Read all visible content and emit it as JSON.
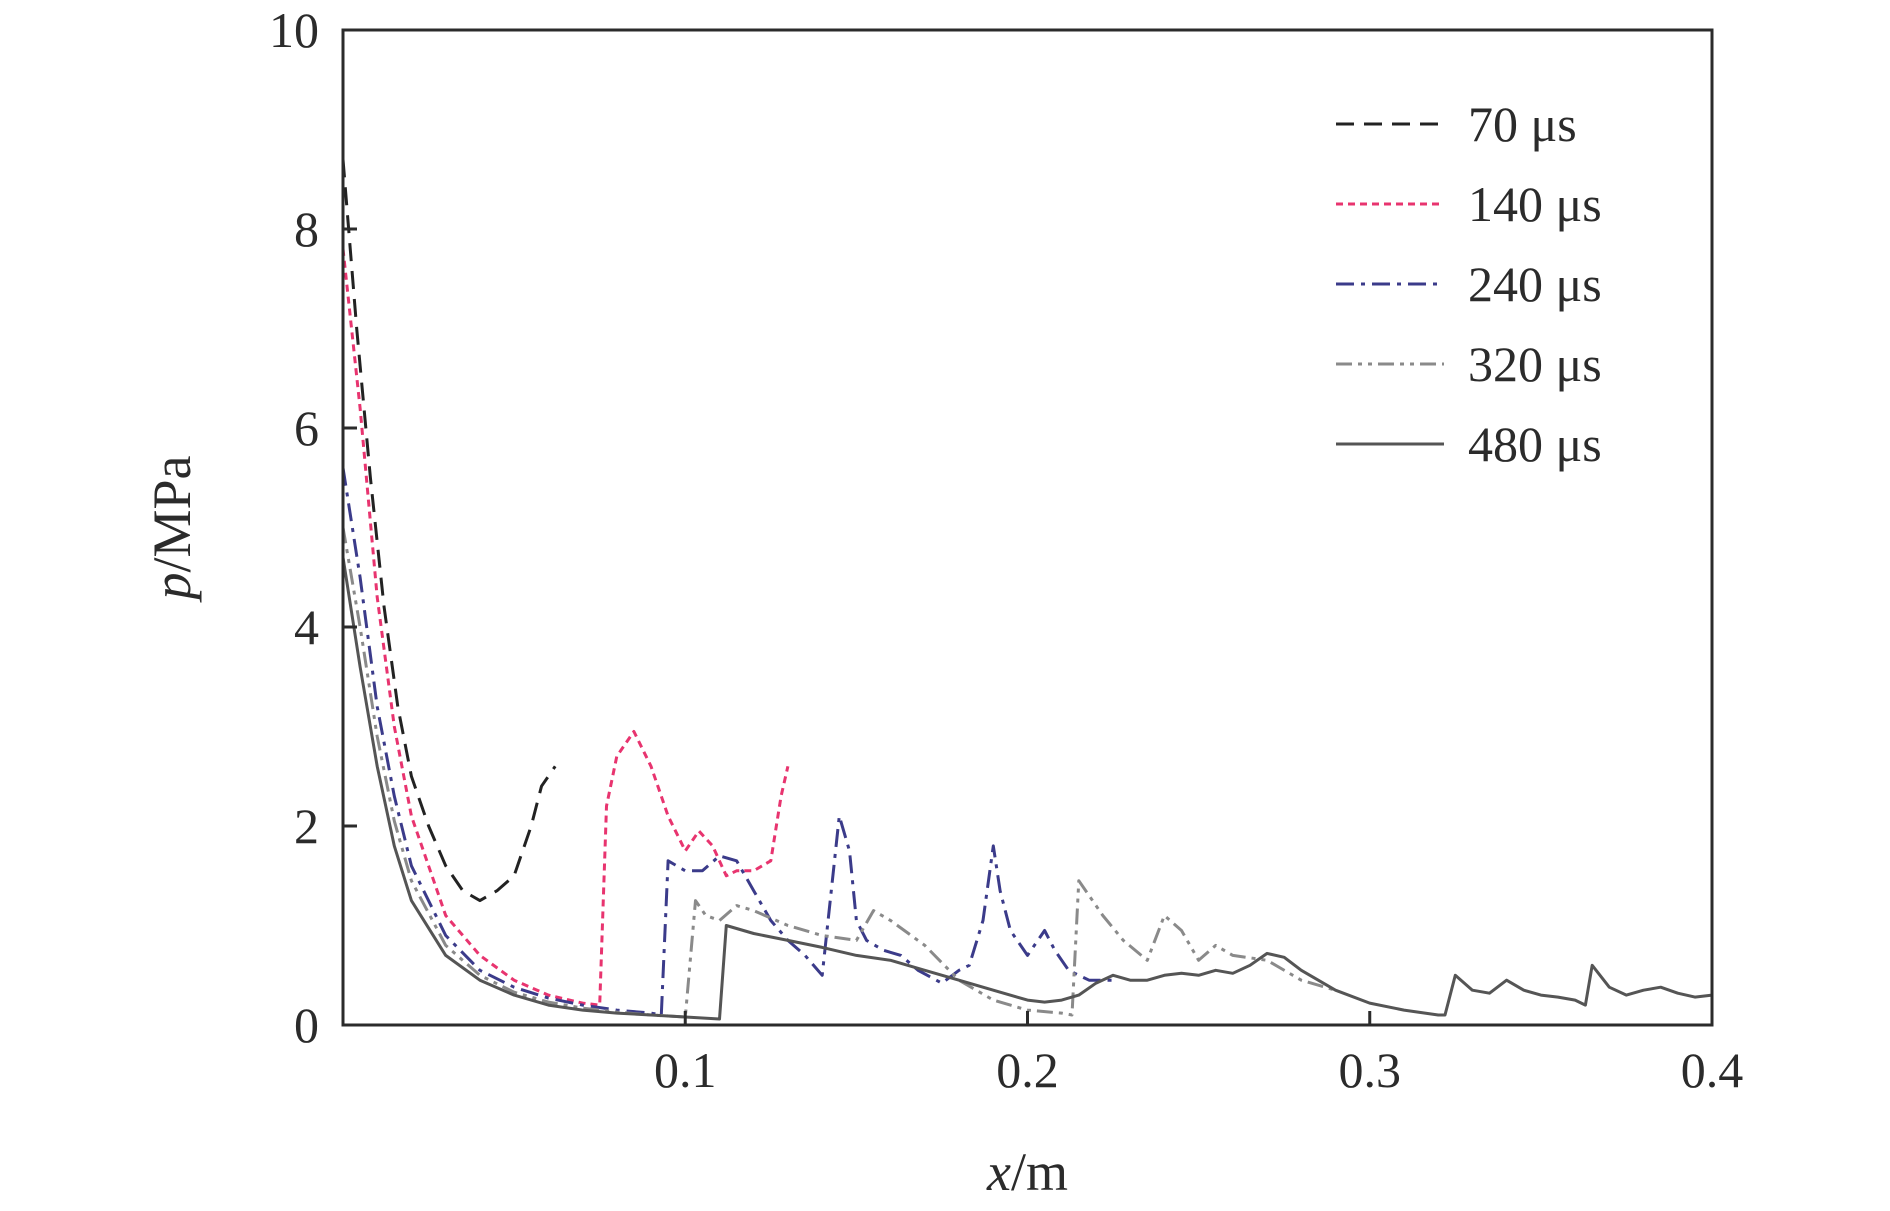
{
  "chart_data": {
    "type": "line",
    "xlabel": {
      "var": "x",
      "unit": "/m"
    },
    "ylabel": {
      "var": "p",
      "unit": "/MPa"
    },
    "xlim": [
      0.0,
      0.4
    ],
    "ylim": [
      0,
      10
    ],
    "x_ticks": [
      0.1,
      0.2,
      0.3,
      0.4
    ],
    "x_tick_labels": [
      "0.1",
      "0.2",
      "0.3",
      "0.4"
    ],
    "y_ticks": [
      0,
      2,
      4,
      6,
      8,
      10
    ],
    "y_tick_labels": [
      "0",
      "2",
      "4",
      "6",
      "8",
      "10"
    ],
    "grid": false,
    "legend_position": "top-right",
    "series": [
      {
        "name": "70 μs",
        "color": "#222222",
        "dash": "dashed",
        "x": [
          0.0,
          0.004,
          0.008,
          0.012,
          0.016,
          0.02,
          0.025,
          0.03,
          0.035,
          0.04,
          0.045,
          0.05,
          0.055,
          0.058,
          0.06,
          0.062
        ],
        "y": [
          8.7,
          7.0,
          5.5,
          4.2,
          3.2,
          2.5,
          2.0,
          1.6,
          1.35,
          1.25,
          1.35,
          1.5,
          2.0,
          2.4,
          2.5,
          2.6
        ]
      },
      {
        "name": "140 μs",
        "color": "#e8346f",
        "dash": "dotted",
        "x": [
          0.0,
          0.005,
          0.01,
          0.015,
          0.02,
          0.03,
          0.04,
          0.05,
          0.06,
          0.07,
          0.075,
          0.077,
          0.08,
          0.085,
          0.09,
          0.095,
          0.1,
          0.104,
          0.108,
          0.112,
          0.115,
          0.12,
          0.125,
          0.128,
          0.13
        ],
        "y": [
          7.8,
          6.2,
          4.3,
          3.0,
          2.1,
          1.1,
          0.7,
          0.45,
          0.3,
          0.22,
          0.2,
          2.2,
          2.7,
          2.95,
          2.6,
          2.1,
          1.75,
          1.95,
          1.8,
          1.5,
          1.55,
          1.55,
          1.65,
          2.3,
          2.6
        ]
      },
      {
        "name": "240 μs",
        "color": "#3b3b8a",
        "dash": "dashdot",
        "x": [
          0.0,
          0.005,
          0.01,
          0.015,
          0.02,
          0.03,
          0.04,
          0.05,
          0.06,
          0.07,
          0.08,
          0.09,
          0.093,
          0.095,
          0.1,
          0.105,
          0.11,
          0.115,
          0.12,
          0.125,
          0.13,
          0.135,
          0.14,
          0.145,
          0.148,
          0.15,
          0.153,
          0.158,
          0.163,
          0.168,
          0.175,
          0.18,
          0.183,
          0.187,
          0.19,
          0.192,
          0.195,
          0.2,
          0.205,
          0.208,
          0.212,
          0.218,
          0.222,
          0.225
        ],
        "y": [
          5.6,
          4.5,
          3.2,
          2.3,
          1.6,
          0.9,
          0.55,
          0.38,
          0.27,
          0.2,
          0.15,
          0.12,
          0.1,
          1.65,
          1.55,
          1.55,
          1.7,
          1.65,
          1.35,
          1.05,
          0.85,
          0.7,
          0.5,
          2.1,
          1.75,
          1.05,
          0.85,
          0.75,
          0.7,
          0.55,
          0.42,
          0.55,
          0.6,
          1.05,
          1.8,
          1.35,
          0.95,
          0.7,
          0.95,
          0.75,
          0.55,
          0.45,
          0.45,
          0.45
        ]
      },
      {
        "name": "320 μs",
        "color": "#8a8a8a",
        "dash": "dashdotdot",
        "x": [
          0.0,
          0.005,
          0.01,
          0.015,
          0.02,
          0.03,
          0.04,
          0.05,
          0.06,
          0.07,
          0.08,
          0.09,
          0.1,
          0.103,
          0.106,
          0.11,
          0.115,
          0.12,
          0.13,
          0.14,
          0.15,
          0.155,
          0.16,
          0.17,
          0.18,
          0.19,
          0.2,
          0.21,
          0.213,
          0.215,
          0.218,
          0.222,
          0.228,
          0.235,
          0.24,
          0.245,
          0.25,
          0.255,
          0.26,
          0.27,
          0.28,
          0.29
        ],
        "y": [
          5.0,
          4.0,
          2.9,
          2.05,
          1.45,
          0.8,
          0.5,
          0.33,
          0.23,
          0.17,
          0.13,
          0.1,
          0.08,
          1.25,
          1.1,
          1.05,
          1.2,
          1.15,
          1.0,
          0.9,
          0.85,
          1.15,
          1.05,
          0.8,
          0.45,
          0.25,
          0.15,
          0.12,
          0.1,
          1.45,
          1.3,
          1.1,
          0.85,
          0.65,
          1.1,
          0.95,
          0.65,
          0.8,
          0.7,
          0.65,
          0.45,
          0.35
        ]
      },
      {
        "name": "480 μs",
        "color": "#555555",
        "dash": "solid",
        "x": [
          0.0,
          0.005,
          0.01,
          0.015,
          0.02,
          0.03,
          0.04,
          0.05,
          0.06,
          0.07,
          0.08,
          0.09,
          0.1,
          0.105,
          0.11,
          0.112,
          0.12,
          0.13,
          0.14,
          0.15,
          0.16,
          0.17,
          0.18,
          0.19,
          0.2,
          0.205,
          0.21,
          0.215,
          0.22,
          0.225,
          0.23,
          0.235,
          0.24,
          0.245,
          0.25,
          0.255,
          0.26,
          0.265,
          0.27,
          0.275,
          0.28,
          0.29,
          0.3,
          0.31,
          0.32,
          0.322,
          0.325,
          0.33,
          0.335,
          0.34,
          0.345,
          0.35,
          0.355,
          0.36,
          0.363,
          0.365,
          0.37,
          0.375,
          0.38,
          0.385,
          0.39,
          0.395,
          0.4
        ],
        "y": [
          4.7,
          3.6,
          2.6,
          1.8,
          1.25,
          0.7,
          0.45,
          0.3,
          0.2,
          0.15,
          0.12,
          0.1,
          0.08,
          0.07,
          0.06,
          1.0,
          0.92,
          0.85,
          0.78,
          0.7,
          0.65,
          0.55,
          0.45,
          0.35,
          0.25,
          0.23,
          0.25,
          0.3,
          0.42,
          0.5,
          0.45,
          0.45,
          0.5,
          0.52,
          0.5,
          0.55,
          0.52,
          0.6,
          0.72,
          0.68,
          0.55,
          0.35,
          0.22,
          0.15,
          0.1,
          0.1,
          0.5,
          0.35,
          0.32,
          0.45,
          0.35,
          0.3,
          0.28,
          0.25,
          0.2,
          0.6,
          0.38,
          0.3,
          0.35,
          0.38,
          0.32,
          0.28,
          0.3
        ]
      }
    ]
  }
}
